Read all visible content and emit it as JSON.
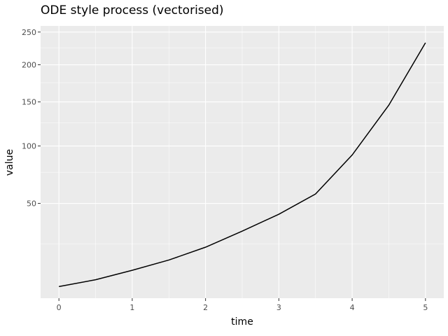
{
  "chart_data": {
    "type": "line",
    "title": "ODE style process (vectorised)",
    "xlabel": "time",
    "ylabel": "value",
    "xlim": [
      -0.25,
      5.25
    ],
    "ylim": [
      5,
      260
    ],
    "y_scale": "sqrt",
    "x_ticks": [
      0,
      1,
      2,
      3,
      4,
      5
    ],
    "x_tick_labels": [
      "0",
      "1",
      "2",
      "3",
      "4",
      "5"
    ],
    "x_minor_ticks": [
      0.5,
      1.5,
      2.5,
      3.5,
      4.5
    ],
    "y_ticks": [
      50,
      100,
      150,
      200,
      250
    ],
    "y_tick_labels": [
      "50",
      "100",
      "150",
      "200",
      "250"
    ],
    "y_minor_ticks": [
      25,
      75,
      125,
      175,
      225
    ],
    "grid": true,
    "legend": "none",
    "colors": {
      "panel": "#ebebeb",
      "grid": "#ffffff",
      "line": "#000000"
    },
    "series": [
      {
        "x": [
          0,
          0.5,
          1,
          1.5,
          2,
          2.5,
          3,
          3.5,
          4,
          4.5,
          5
        ],
        "y": [
          8,
          10.1,
          13.4,
          17.5,
          23.4,
          32.0,
          42.5,
          57.0,
          91,
          146,
          233
        ]
      }
    ]
  }
}
